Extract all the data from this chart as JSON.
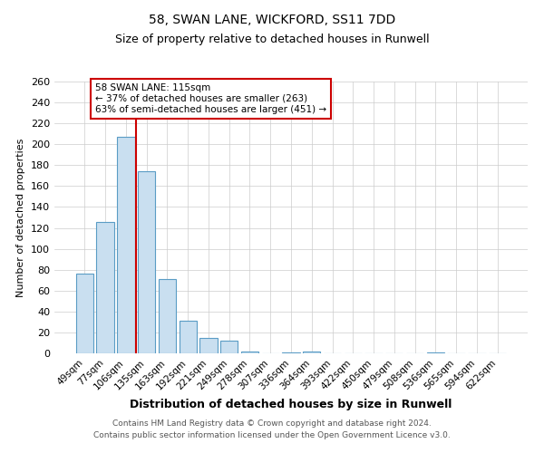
{
  "title_line1": "58, SWAN LANE, WICKFORD, SS11 7DD",
  "title_line2": "Size of property relative to detached houses in Runwell",
  "xlabel": "Distribution of detached houses by size in Runwell",
  "ylabel": "Number of detached properties",
  "bar_labels": [
    "49sqm",
    "77sqm",
    "106sqm",
    "135sqm",
    "163sqm",
    "192sqm",
    "221sqm",
    "249sqm",
    "278sqm",
    "307sqm",
    "336sqm",
    "364sqm",
    "393sqm",
    "422sqm",
    "450sqm",
    "479sqm",
    "508sqm",
    "536sqm",
    "565sqm",
    "594sqm",
    "622sqm"
  ],
  "bar_values": [
    76,
    126,
    207,
    174,
    71,
    31,
    15,
    12,
    2,
    0,
    1,
    2,
    0,
    0,
    0,
    0,
    0,
    1,
    0,
    0,
    0
  ],
  "bar_color": "#c9dff0",
  "bar_edge_color": "#5a9cc5",
  "vline_color": "#cc0000",
  "ylim": [
    0,
    260
  ],
  "yticks": [
    0,
    20,
    40,
    60,
    80,
    100,
    120,
    140,
    160,
    180,
    200,
    220,
    240,
    260
  ],
  "annotation_line1": "58 SWAN LANE: 115sqm",
  "annotation_line2": "← 37% of detached houses are smaller (263)",
  "annotation_line3": "63% of semi-detached houses are larger (451) →",
  "annotation_box_color": "#ffffff",
  "annotation_box_edge": "#cc0000",
  "footer_line1": "Contains HM Land Registry data © Crown copyright and database right 2024.",
  "footer_line2": "Contains public sector information licensed under the Open Government Licence v3.0.",
  "background_color": "#ffffff",
  "plot_bg_color": "#ffffff",
  "grid_color": "#cccccc"
}
